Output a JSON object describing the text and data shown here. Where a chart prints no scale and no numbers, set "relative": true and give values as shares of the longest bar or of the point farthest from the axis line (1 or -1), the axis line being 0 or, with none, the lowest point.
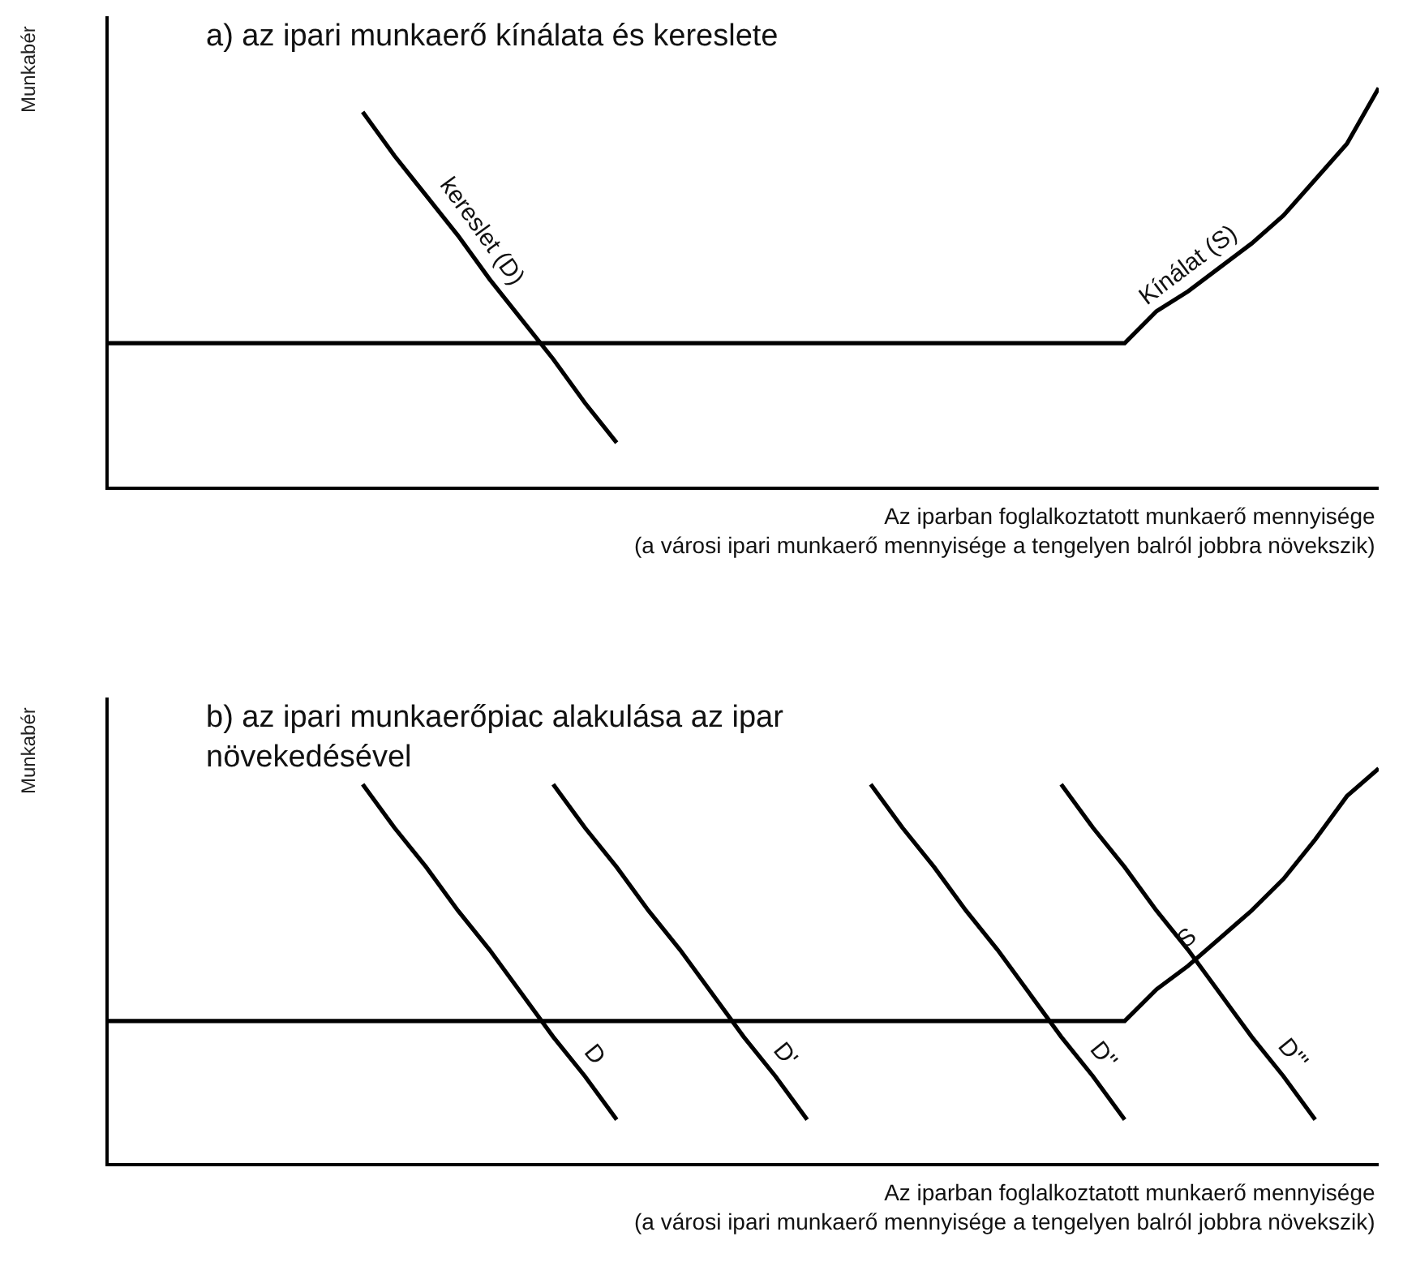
{
  "chart_data": [
    {
      "type": "line",
      "relative": true,
      "title": "a) az ipari munkaerő kínálata és kereslete",
      "xlabel": "Az iparban foglalkoztatott munkaerő mennyisége\n(a városi ipari munkaerő mennyisége a tengelyen balról jobbra növekszik)",
      "ylabel": "Munkabér",
      "legend": false,
      "marker": "none",
      "line_style": "solid",
      "categories": [
        null,
        null,
        null,
        null,
        null,
        null,
        null,
        null,
        null,
        null,
        null,
        null,
        null,
        null,
        null,
        null,
        null,
        null,
        null,
        null,
        null,
        null,
        null,
        null,
        null,
        null,
        null,
        null,
        null,
        null,
        null,
        null,
        null,
        null,
        null,
        null,
        null,
        null,
        null,
        null,
        null
      ],
      "series": [
        {
          "name": "Kínálat (S)",
          "color": "#000000",
          "values": [
            0.36,
            0.36,
            0.36,
            0.36,
            0.36,
            0.36,
            0.36,
            0.36,
            0.36,
            0.36,
            0.36,
            0.36,
            0.36,
            0.36,
            0.36,
            0.36,
            0.36,
            0.36,
            0.36,
            0.36,
            0.36,
            0.36,
            0.36,
            0.36,
            0.36,
            0.36,
            0.36,
            0.36,
            0.36,
            0.36,
            0.36,
            0.36,
            0.36,
            0.44,
            0.49,
            0.55,
            0.61,
            0.68,
            0.77,
            0.86,
            1
          ]
        },
        {
          "name": "kereslet (D)",
          "color": "#000000",
          "values": [
            null,
            null,
            null,
            null,
            null,
            null,
            null,
            null,
            0.94,
            0.83,
            0.73,
            0.63,
            0.52,
            0.42,
            0.32,
            0.21,
            0.11,
            null,
            null,
            null,
            null,
            null,
            null,
            null,
            null,
            null,
            null,
            null,
            null,
            null,
            null,
            null,
            null,
            null,
            null,
            null,
            null,
            null,
            null,
            null,
            null
          ]
        }
      ]
    },
    {
      "type": "line",
      "relative": true,
      "title": "b) az ipari munkaerőpiac alakulása az ipar\nnövekedésével",
      "xlabel": "Az iparban foglalkoztatott munkaerő mennyisége\n(a városi ipari munkaerő mennyisége a tengelyen balról jobbra növekszik)",
      "ylabel": "Munkabér",
      "legend": false,
      "marker": "none",
      "line_style": "solid",
      "categories": [
        null,
        null,
        null,
        null,
        null,
        null,
        null,
        null,
        null,
        null,
        null,
        null,
        null,
        null,
        null,
        null,
        null,
        null,
        null,
        null,
        null,
        null,
        null,
        null,
        null,
        null,
        null,
        null,
        null,
        null,
        null,
        null,
        null,
        null,
        null,
        null,
        null,
        null,
        null,
        null,
        null
      ],
      "series": [
        {
          "name": "S",
          "color": "#000000",
          "values": [
            0.36,
            0.36,
            0.36,
            0.36,
            0.36,
            0.36,
            0.36,
            0.36,
            0.36,
            0.36,
            0.36,
            0.36,
            0.36,
            0.36,
            0.36,
            0.36,
            0.36,
            0.36,
            0.36,
            0.36,
            0.36,
            0.36,
            0.36,
            0.36,
            0.36,
            0.36,
            0.36,
            0.36,
            0.36,
            0.36,
            0.36,
            0.36,
            0.36,
            0.44,
            0.5,
            0.57,
            0.64,
            0.72,
            0.82,
            0.93,
            1
          ]
        },
        {
          "name": "D",
          "color": "#000000",
          "values": [
            null,
            null,
            null,
            null,
            null,
            null,
            null,
            null,
            0.96,
            0.85,
            0.75,
            0.64,
            0.54,
            0.43,
            0.32,
            0.22,
            0.11,
            null,
            null,
            null,
            null,
            null,
            null,
            null,
            null,
            null,
            null,
            null,
            null,
            null,
            null,
            null,
            null,
            null,
            null,
            null,
            null,
            null,
            null,
            null,
            null
          ]
        },
        {
          "name": "D'",
          "color": "#000000",
          "values": [
            null,
            null,
            null,
            null,
            null,
            null,
            null,
            null,
            null,
            null,
            null,
            null,
            null,
            null,
            0.96,
            0.85,
            0.75,
            0.64,
            0.54,
            0.43,
            0.32,
            0.22,
            0.11,
            null,
            null,
            null,
            null,
            null,
            null,
            null,
            null,
            null,
            null,
            null,
            null,
            null,
            null,
            null,
            null,
            null,
            null
          ]
        },
        {
          "name": "D''",
          "color": "#000000",
          "values": [
            null,
            null,
            null,
            null,
            null,
            null,
            null,
            null,
            null,
            null,
            null,
            null,
            null,
            null,
            null,
            null,
            null,
            null,
            null,
            null,
            null,
            null,
            null,
            null,
            0.96,
            0.85,
            0.75,
            0.64,
            0.54,
            0.43,
            0.32,
            0.22,
            0.11,
            null,
            null,
            null,
            null,
            null,
            null,
            null,
            null
          ]
        },
        {
          "name": "D'''",
          "color": "#000000",
          "values": [
            null,
            null,
            null,
            null,
            null,
            null,
            null,
            null,
            null,
            null,
            null,
            null,
            null,
            null,
            null,
            null,
            null,
            null,
            null,
            null,
            null,
            null,
            null,
            null,
            null,
            null,
            null,
            null,
            null,
            null,
            0.96,
            0.85,
            0.75,
            0.64,
            0.54,
            0.43,
            0.32,
            0.22,
            0.11,
            null,
            null
          ]
        }
      ]
    }
  ]
}
